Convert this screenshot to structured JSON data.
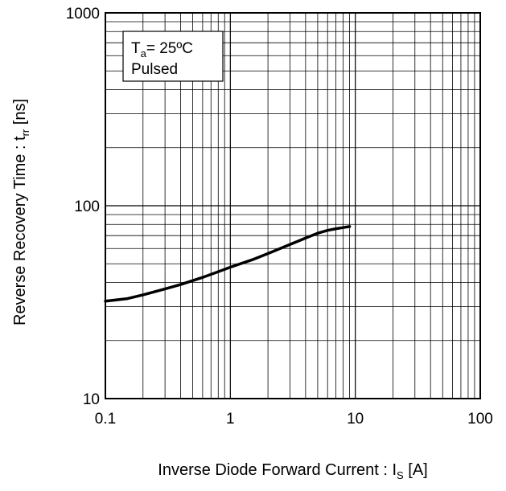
{
  "chart_data": {
    "type": "line",
    "title": "",
    "xlabel": {
      "main": "Inverse Diode  Forward Current : I",
      "sub": "S",
      "unit": " [A]"
    },
    "ylabel": {
      "main": "Reverse Recovery Time : t",
      "sub": "rr",
      "unit": " [ns]"
    },
    "x_scale": "log",
    "y_scale": "log",
    "xlim": [
      0.1,
      100
    ],
    "ylim": [
      10,
      1000
    ],
    "x_ticks": [
      {
        "value": 0.1,
        "label": "0.1"
      },
      {
        "value": 1,
        "label": "1"
      },
      {
        "value": 10,
        "label": "10"
      },
      {
        "value": 100,
        "label": "100"
      }
    ],
    "y_ticks": [
      {
        "value": 10,
        "label": "10"
      },
      {
        "value": 100,
        "label": "100"
      },
      {
        "value": 1000,
        "label": "1000"
      }
    ],
    "grid": true,
    "legend_box": {
      "line1_main": "T",
      "line1_sub": "a",
      "line1_rest": "= 25ºC",
      "line2": "Pulsed",
      "position": "top-left"
    },
    "series": [
      {
        "color": "#000000",
        "x": [
          0.1,
          0.15,
          0.2,
          0.3,
          0.4,
          0.6,
          0.8,
          1.0,
          1.5,
          2.0,
          3.0,
          4.0,
          5.0,
          6.0,
          7.0,
          8.0,
          9.0
        ],
        "y": [
          32,
          33,
          34.5,
          37,
          39,
          42.5,
          45.5,
          48,
          52.5,
          56.5,
          63,
          68,
          72,
          74.5,
          76,
          77,
          78
        ]
      }
    ]
  }
}
